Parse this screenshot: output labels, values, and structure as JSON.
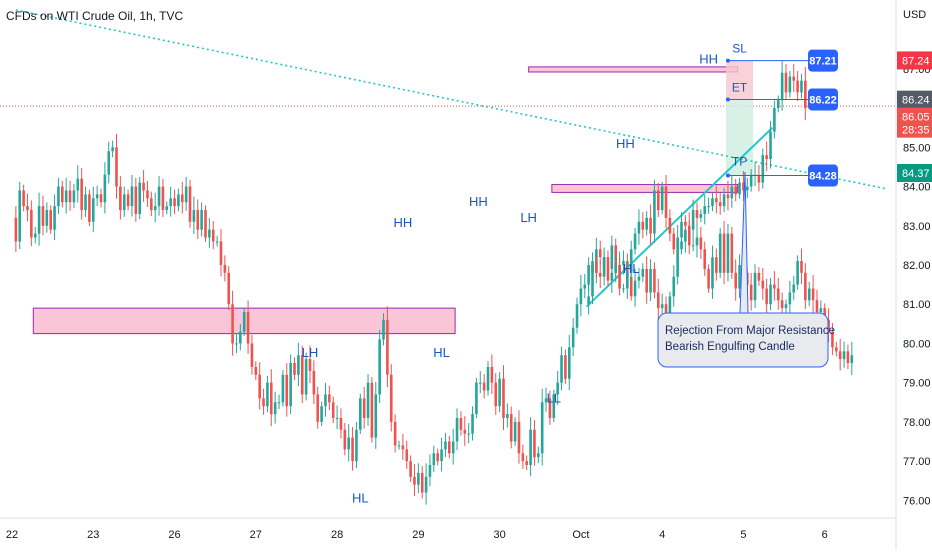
{
  "header": {
    "title": "CFDs on WTI Crude Oil, 1h, TVC"
  },
  "colors": {
    "up": "#26a69a",
    "down": "#ef5350",
    "resistance": "#f8bbd0",
    "zone_border": "#9c27b0",
    "trend": "#1fc8c8",
    "label": "#1a55c8",
    "price_tag": "#2962ff",
    "sl_tag": "#f23645",
    "last_tag": "#555b66",
    "tp_tag": "#089981"
  },
  "chart_data": {
    "type": "candlestick",
    "title": "CFDs on WTI Crude Oil, 1h, TVC",
    "currency": "USD",
    "ylim": [
      75.55,
      88.5
    ],
    "y_ticks": [
      "76.00",
      "77.00",
      "78.00",
      "79.00",
      "80.00",
      "81.00",
      "82.00",
      "83.00",
      "84.00",
      "85.00",
      "86.00",
      "87.00"
    ],
    "x_ticks": [
      "22",
      "23",
      "26",
      "27",
      "28",
      "29",
      "30",
      "Oct",
      "4",
      "5",
      "6"
    ],
    "x_tick_times": [
      0,
      21,
      42,
      63,
      84,
      105,
      126,
      147,
      168,
      189,
      210
    ],
    "series": [
      {
        "t": 0,
        "p": [
          83.2,
          82.6,
          83.9,
          83.5,
          83.4,
          82.7,
          82.8,
          83.5,
          83.0,
          83.4,
          82.9,
          83.5,
          84.0,
          83.6,
          83.9,
          83.6,
          83.9,
          84.2,
          83.4,
          83.8,
          83.1,
          83.7,
          83.8,
          83.6,
          84.3,
          84.9,
          85.0,
          84.0,
          83.4,
          83.8,
          83.5,
          84.0,
          83.3,
          84.1,
          83.9,
          83.7,
          83.4,
          83.5,
          84.0,
          83.4,
          83.5,
          83.7,
          83.5,
          83.8,
          83.6,
          84.0,
          83.1,
          83.4,
          82.9,
          83.4,
          82.7,
          82.9,
          82.6,
          82.6,
          82.0,
          81.8,
          81.0,
          80.0,
          80.0,
          80.3,
          80.8,
          80.0,
          79.4,
          79.2,
          78.6,
          78.4,
          79.0,
          78.2,
          78.5,
          78.5,
          79.2,
          78.4,
          79.5,
          79.2,
          79.7,
          78.7,
          79.6,
          79.3,
          78.7,
          78.0,
          78.4,
          78.7,
          78.5,
          78.1,
          78.1,
          77.8,
          77.3,
          77.6,
          77.0,
          77.8,
          78.6,
          78.1,
          79.0,
          77.6,
          78.7,
          80.1,
          80.6,
          79.2,
          78.0,
          77.4,
          77.4,
          77.3,
          77.0,
          76.6,
          76.4,
          76.7,
          76.2,
          76.6,
          76.9,
          77.2,
          77.0,
          77.3,
          77.5,
          77.2,
          77.5,
          78.1,
          77.8,
          77.7,
          77.7,
          78.2,
          79.0,
          79.0,
          78.8,
          79.4,
          79.0,
          78.4,
          79.1,
          78.1,
          78.2,
          77.5,
          78.0,
          77.2,
          77.0,
          76.9,
          77.8,
          77.1,
          77.2,
          78.5,
          78.6,
          78.1,
          78.7,
          79.0,
          79.7,
          79.1,
          79.9,
          80.4,
          81.0,
          81.4,
          81.5,
          82.0,
          81.8,
          82.4,
          82.2,
          81.9,
          81.9,
          82.5,
          81.8,
          82.0,
          82.1,
          81.7,
          81.2,
          81.6,
          81.7,
          81.9,
          81.3,
          81.9,
          81.3,
          80.9,
          81.0,
          80.7,
          81.2,
          81.7,
          82.4,
          82.6,
          82.9,
          82.5,
          82.5,
          82.7,
          82.4,
          81.9,
          81.4,
          82.2,
          81.8,
          82.8,
          81.8,
          82.8,
          81.8,
          81.4,
          82.0,
          81.8,
          81.5,
          81.1,
          81.8,
          81.6,
          81.4,
          81.0,
          81.5,
          81.4,
          81.1,
          80.9,
          81.0,
          81.3,
          81.5,
          82.1,
          81.8,
          81.1,
          81.4,
          81.1,
          80.8,
          80.9,
          80.6,
          80.3,
          79.9,
          79.8,
          79.6,
          79.8,
          79.5,
          79.7
        ]
      },
      {
        "t": 148,
        "p": [
          81.0,
          81.2,
          82.1,
          81.8,
          81.7,
          82.2,
          81.6,
          81.8,
          82.0,
          81.4,
          81.4,
          81.8,
          82.4,
          82.8,
          83.1,
          82.9,
          83.2,
          82.8,
          83.9,
          83.4,
          84.0,
          83.2,
          82.8,
          82.4,
          82.7,
          83.1,
          83.0,
          82.9,
          83.4,
          83.2,
          83.3,
          83.5,
          83.5,
          83.7,
          83.6,
          83.5,
          83.8,
          83.7,
          84.0,
          83.8,
          84.1,
          83.9,
          84.0,
          84.3,
          84.3,
          84.1,
          84.8,
          84.7,
          85.4,
          86.0,
          86.2,
          86.9,
          86.4,
          86.8,
          86.7,
          86.4,
          86.7,
          86.0
        ]
      }
    ],
    "resistance_zones": [
      {
        "t0": 5.5,
        "t1": 114.5,
        "y0": 80.25,
        "y1": 80.9
      },
      {
        "t0": 139.5,
        "t1": 187.5,
        "y0": 83.85,
        "y1": 84.05
      },
      {
        "t0": 133.5,
        "t1": 187.5,
        "y0": 86.92,
        "y1": 87.05
      }
    ],
    "trend_lines": [
      {
        "name": "resistance-diagonal",
        "t0": 1,
        "y0": 88.5,
        "t1": 226,
        "y1": 83.94,
        "style": "dotted"
      },
      {
        "name": "support-trend",
        "t0": 148.5,
        "y0": 80.94,
        "t1": 196.5,
        "y1": 85.5,
        "style": "solid"
      }
    ],
    "annotations": [
      {
        "text": "HH",
        "t": 101,
        "y": 82.97
      },
      {
        "text": "HH",
        "t": 120.5,
        "y": 83.5
      },
      {
        "text": "LH",
        "t": 133.5,
        "y": 83.1
      },
      {
        "text": "HH",
        "t": 158.5,
        "y": 84.98
      },
      {
        "text": "HH",
        "t": 180,
        "y": 87.14
      },
      {
        "text": "LH",
        "t": 77,
        "y": 79.65
      },
      {
        "text": "HL",
        "t": 111,
        "y": 79.65
      },
      {
        "text": "HL",
        "t": 160,
        "y": 81.8
      },
      {
        "text": "HL",
        "t": 90,
        "y": 75.95
      },
      {
        "text": "LL",
        "t": 140,
        "y": 78.5
      }
    ],
    "trade_labels": [
      {
        "text": "SL",
        "price": "87.21"
      },
      {
        "text": "ET",
        "price": "86.22"
      },
      {
        "text": "TP",
        "price": "84.28"
      }
    ],
    "callout": {
      "lines": [
        "Rejection From Major Resistance",
        "Bearish Engulfing Candle"
      ]
    },
    "axis_tags": [
      {
        "kind": "sl",
        "value": "87.24"
      },
      {
        "kind": "last",
        "value": "86.24"
      },
      {
        "kind": "current",
        "value": "86.05",
        "sub": "28:35"
      },
      {
        "kind": "tp",
        "value": "84.37"
      }
    ]
  }
}
